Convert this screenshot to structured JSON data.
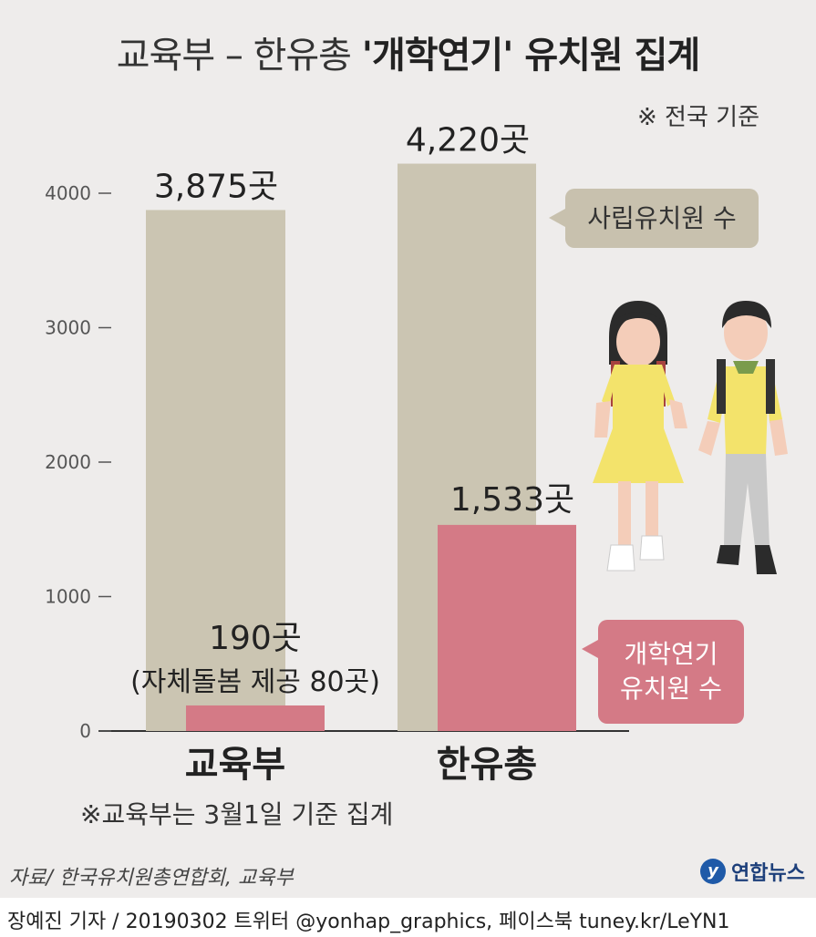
{
  "title_prefix": "교육부 – 한유총",
  "title_bold": "'개학연기' 유치원 집계",
  "basis_note": "※ 전국 기준",
  "footnote": "※교육부는 3월1일 기준 집계",
  "source": "자료/ 한국유치원총연합회, 교육부",
  "credit": "장예진 기자 / 20190302 트위터 @yonhap_graphics, 페이스북 tuney.kr/LeYN1",
  "logo": {
    "mark": "y",
    "text": "연합뉴스"
  },
  "legend": {
    "private": "사립유치원 수",
    "delay_line1": "개학연기",
    "delay_line2": "유치원 수"
  },
  "colors": {
    "private": "#cbc5b2",
    "delay": "#d47a86",
    "background": "#eeeceb"
  },
  "chart_data": {
    "type": "bar",
    "categories": [
      "교육부",
      "한유총"
    ],
    "series": [
      {
        "name": "사립유치원 수",
        "values": [
          3875,
          4220
        ],
        "labels": [
          "3,875곳",
          "4,220곳"
        ]
      },
      {
        "name": "개학연기 유치원 수",
        "values": [
          190,
          1533
        ],
        "labels": [
          "190곳",
          "1,533곳"
        ]
      }
    ],
    "annotation": "(자체돌봄 제공 80곳)",
    "yticks": [
      0,
      1000,
      2000,
      3000,
      4000
    ],
    "ytick_labels": [
      "0",
      "1000",
      "2000",
      "3000",
      "4000"
    ],
    "ylim": [
      0,
      4400
    ],
    "grid": false,
    "xlabel": "",
    "ylabel": ""
  }
}
